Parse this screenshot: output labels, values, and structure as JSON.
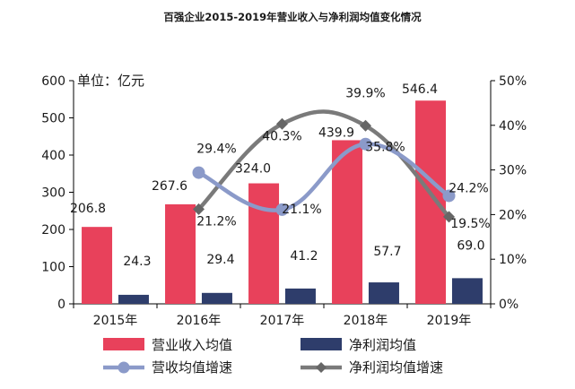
{
  "chart_data": {
    "type": "bar",
    "title": "百强企业2015-2019年营业收入与净利润均值变化情况",
    "unit_label": "单位：亿元",
    "categories": [
      "2015年",
      "2016年",
      "2017年",
      "2018年",
      "2019年"
    ],
    "left_axis": {
      "ylim": [
        0,
        600
      ],
      "ticks": [
        "0",
        "100",
        "200",
        "300",
        "400",
        "500",
        "600"
      ]
    },
    "right_axis": {
      "ylim": [
        0,
        50
      ],
      "ticks": [
        "0%",
        "10%",
        "20%",
        "30%",
        "40%",
        "50%"
      ]
    },
    "series": [
      {
        "name": "营业收入均值",
        "type": "bar",
        "axis": "left",
        "color": "#e8415b",
        "values": [
          206.8,
          267.6,
          324.0,
          439.9,
          546.4
        ],
        "labels": [
          "206.8",
          "267.6",
          "324.0",
          "439.9",
          "546.4"
        ]
      },
      {
        "name": "净利润均值",
        "type": "bar",
        "axis": "left",
        "color": "#2e3d6b",
        "values": [
          24.3,
          29.4,
          41.2,
          57.7,
          69.0
        ],
        "labels": [
          "24.3",
          "29.4",
          "41.2",
          "57.7",
          "69.0"
        ]
      },
      {
        "name": "营收均值增速",
        "type": "line",
        "axis": "right",
        "color": "#8b9ac9",
        "marker": "circle",
        "values": [
          null,
          29.4,
          21.1,
          35.8,
          24.2
        ],
        "labels": [
          "",
          "29.4%",
          "21.1%",
          "35.8%",
          "24.2%"
        ]
      },
      {
        "name": "净利润均值增速",
        "type": "line",
        "axis": "right",
        "color": "#7a7a7a",
        "marker": "diamond",
        "values": [
          null,
          21.2,
          40.3,
          39.9,
          19.5
        ],
        "labels": [
          "",
          "21.2%",
          "40.3%",
          "39.9%",
          "19.5%"
        ]
      }
    ],
    "legend_position": "bottom"
  }
}
